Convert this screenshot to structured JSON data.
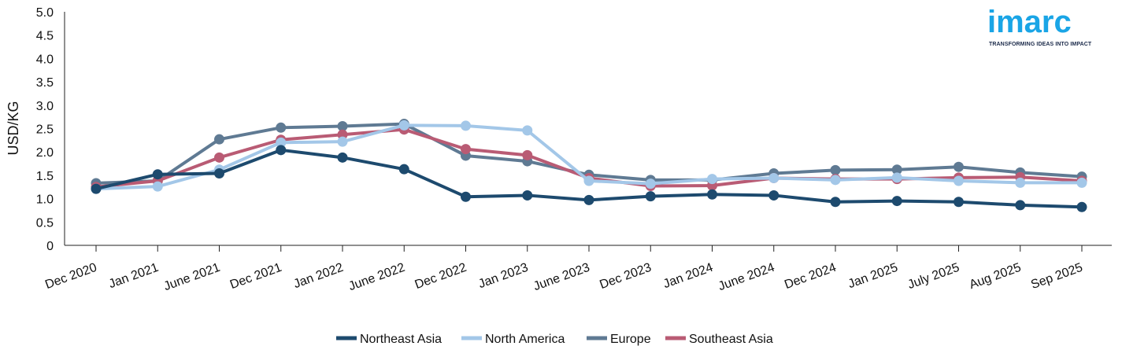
{
  "logo": {
    "name": "imarc",
    "tagline": "TRANSFORMING IDEAS INTO IMPACT",
    "color": "#1aa5e6"
  },
  "chart_data": {
    "type": "line",
    "title": "",
    "xlabel": "",
    "ylabel": "USD/KG",
    "ylim": [
      0,
      5.0
    ],
    "yticks": [
      "0",
      "0.5",
      "1.0",
      "1.5",
      "2.0",
      "2.5",
      "3.0",
      "3.5",
      "4.0",
      "4.5",
      "5.0"
    ],
    "categories": [
      "Dec 2020",
      "Jan 2021",
      "June 2021",
      "Dec 2021",
      "Jan 2022",
      "June 2022",
      "Dec 2022",
      "Jan 2023",
      "June 2023",
      "Dec 2023",
      "Jan 2024",
      "June 2024",
      "Dec 2024",
      "Jan 2025",
      "July 2025",
      "Aug 2025",
      "Sep 2025"
    ],
    "legend_position": "bottom",
    "grid": false,
    "series": [
      {
        "name": "Europe",
        "color": "#5f7a93",
        "values": [
          1.33,
          1.38,
          2.27,
          2.52,
          2.55,
          2.6,
          1.92,
          1.8,
          1.51,
          1.4,
          1.4,
          1.54,
          1.61,
          1.62,
          1.68,
          1.56,
          1.47
        ]
      },
      {
        "name": "Southeast Asia",
        "color": "#b95b74",
        "values": [
          1.25,
          1.38,
          1.88,
          2.26,
          2.37,
          2.48,
          2.06,
          1.93,
          1.44,
          1.27,
          1.28,
          1.44,
          1.42,
          1.42,
          1.45,
          1.46,
          1.38
        ]
      },
      {
        "name": "North America",
        "color": "#a3c7e8",
        "values": [
          1.21,
          1.26,
          1.62,
          2.2,
          2.22,
          2.57,
          2.56,
          2.46,
          1.38,
          1.32,
          1.42,
          1.44,
          1.4,
          1.45,
          1.38,
          1.34,
          1.34
        ]
      },
      {
        "name": "Northeast Asia",
        "color": "#1d4a6e",
        "values": [
          1.21,
          1.52,
          1.54,
          2.04,
          1.88,
          1.63,
          1.04,
          1.07,
          0.97,
          1.05,
          1.09,
          1.07,
          0.93,
          0.95,
          0.93,
          0.86,
          0.82
        ]
      }
    ],
    "legend_order": [
      "Northeast Asia",
      "North America",
      "Europe",
      "Southeast Asia"
    ]
  }
}
